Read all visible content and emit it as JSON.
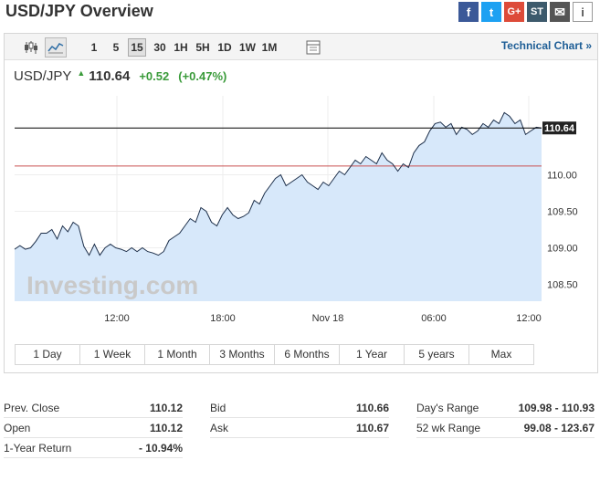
{
  "header": {
    "title": "USD/JPY Overview"
  },
  "share": {
    "facebook": "f",
    "twitter": "t",
    "google": "G+",
    "stocktwits": "ST",
    "mail": "✉",
    "info": "i"
  },
  "toolbar": {
    "intervals": [
      "1",
      "5",
      "15",
      "30",
      "1H",
      "5H",
      "1D",
      "1W",
      "1M"
    ],
    "selected_interval": "15",
    "technical_chart_link": "Technical Chart »"
  },
  "quote": {
    "symbol": "USD/JPY",
    "last": "110.64",
    "change": "+0.52",
    "change_pct": "(+0.47%)",
    "direction": "up"
  },
  "chart_data": {
    "type": "area",
    "x_labels": [
      "12:00",
      "18:00",
      "Nov 18",
      "06:00",
      "12:00"
    ],
    "y_ticks": [
      108.5,
      109.0,
      109.5,
      110.0
    ],
    "y_tick_labels": [
      "108.50",
      "109.00",
      "109.50",
      "110.00"
    ],
    "ylim": [
      108.27,
      111.08
    ],
    "last_price_label": "110.64",
    "reference_line": 110.12,
    "watermark": "Investing.com",
    "series": [
      {
        "values": [
          108.98,
          109.03,
          108.98,
          109.0,
          109.09,
          109.2,
          109.2,
          109.25,
          109.12,
          109.3,
          109.22,
          109.35,
          109.3,
          109.02,
          108.9,
          109.05,
          108.9,
          109.0,
          109.05,
          109.0,
          108.98,
          108.95,
          109.0,
          108.95,
          109.0,
          108.95,
          108.93,
          108.9,
          108.95,
          109.1,
          109.15,
          109.2,
          109.3,
          109.4,
          109.35,
          109.55,
          109.5,
          109.35,
          109.3,
          109.45,
          109.55,
          109.45,
          109.4,
          109.43,
          109.48,
          109.65,
          109.6,
          109.75,
          109.85,
          109.95,
          110.0,
          109.85,
          109.9,
          109.95,
          110.0,
          109.9,
          109.85,
          109.8,
          109.9,
          109.85,
          109.95,
          110.05,
          110.0,
          110.1,
          110.2,
          110.15,
          110.25,
          110.2,
          110.15,
          110.3,
          110.2,
          110.15,
          110.05,
          110.15,
          110.1,
          110.3,
          110.4,
          110.45,
          110.6,
          110.7,
          110.72,
          110.65,
          110.7,
          110.55,
          110.65,
          110.62,
          110.55,
          110.6,
          110.7,
          110.65,
          110.75,
          110.7,
          110.85,
          110.8,
          110.7,
          110.75,
          110.55,
          110.6,
          110.65,
          110.64
        ]
      }
    ]
  },
  "ranges": [
    "1 Day",
    "1 Week",
    "1 Month",
    "3 Months",
    "6 Months",
    "1 Year",
    "5 years",
    "Max"
  ],
  "stats": {
    "col1": [
      {
        "label": "Prev. Close",
        "value": "110.12"
      },
      {
        "label": "Open",
        "value": "110.12"
      },
      {
        "label": "1-Year Return",
        "value": "- 10.94%"
      }
    ],
    "col2": [
      {
        "label": "Bid",
        "value": "110.66"
      },
      {
        "label": "Ask",
        "value": "110.67"
      }
    ],
    "col3": [
      {
        "label": "Day's Range",
        "value": "109.98 - 110.93"
      },
      {
        "label": "52 wk Range",
        "value": "99.08 - 123.67"
      }
    ]
  },
  "colors": {
    "area_fill": "#d7e8fa",
    "line": "#1d2f4a",
    "up": "#3a9b3a",
    "link": "#1e5e96",
    "ref_line": "#c95050"
  }
}
